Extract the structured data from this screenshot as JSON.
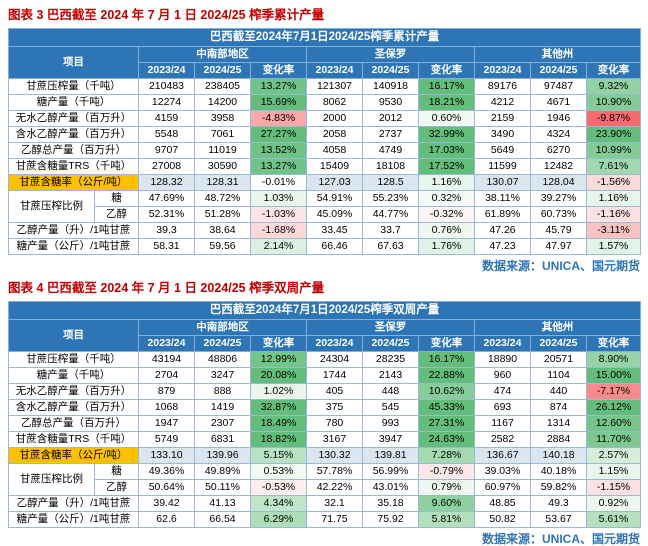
{
  "meta": {
    "title1": "图表 3 巴西截至 2024 年 7 月 1 日 2024/25 榨季累计产量",
    "title2": "图表 4 巴西截至 2024 年 7 月 1 日 2024/25 榨季双周产量",
    "source_label": "数据来源：UNICA、国元期货"
  },
  "colors": {
    "header_bg": "#2e75b6",
    "header_text": "#ffffff",
    "title_red": "#c00000",
    "source_blue": "#2e75b6",
    "border": "#9ab8da",
    "highlight_yellow": "#ffc000",
    "highlight_row_bg": "#dce6f1",
    "positive_green": "#63be7b",
    "negative_red": "#f8696b"
  },
  "tables": [
    {
      "caption": "巴西截至2024年7月1日2024/25榨季累计产量",
      "item_header": "项目",
      "region_headers": [
        "中南部地区",
        "圣保罗",
        "其他州"
      ],
      "period_headers": [
        "2023/24",
        "2024/25",
        "变化率"
      ],
      "rows": [
        {
          "label": "甘蔗压榨量（千吨）",
          "cells": [
            "210483",
            "238405",
            "13.27%",
            "121307",
            "140918",
            "16.17%",
            "89176",
            "97487",
            "9.32%"
          ]
        },
        {
          "label": "糖产量（千吨）",
          "cells": [
            "12274",
            "14200",
            "15.69%",
            "8062",
            "9530",
            "18.21%",
            "4212",
            "4671",
            "10.90%"
          ]
        },
        {
          "label": "无水乙醇产量（百万升）",
          "cells": [
            "4159",
            "3958",
            "-4.83%",
            "2000",
            "2012",
            "0.60%",
            "2159",
            "1946",
            "-9.87%"
          ]
        },
        {
          "label": "含水乙醇产量（百万升）",
          "cells": [
            "5548",
            "7061",
            "27.27%",
            "2058",
            "2737",
            "32.99%",
            "3490",
            "4324",
            "23.90%"
          ]
        },
        {
          "label": "乙醇总产量（百万升）",
          "cells": [
            "9707",
            "11019",
            "13.52%",
            "4058",
            "4749",
            "17.03%",
            "5649",
            "6270",
            "10.99%"
          ]
        },
        {
          "label": "甘蔗含糖量TRS（千吨）",
          "cells": [
            "27008",
            "30590",
            "13.27%",
            "15409",
            "18108",
            "17.52%",
            "11599",
            "12482",
            "7.61%"
          ]
        },
        {
          "label": "甘蔗含糖率（公斤/吨）",
          "highlight": true,
          "cells": [
            "128.32",
            "128.31",
            "-0.01%",
            "127.03",
            "128.5",
            "1.16%",
            "130.07",
            "128.04",
            "-1.56%"
          ]
        },
        {
          "group": "甘蔗压榨比例",
          "label": "糖",
          "cells": [
            "47.69%",
            "48.72%",
            "1.03%",
            "54.91%",
            "55.23%",
            "0.32%",
            "38.11%",
            "39.27%",
            "1.16%"
          ]
        },
        {
          "in_group": true,
          "label": "乙醇",
          "cells": [
            "52.31%",
            "51.28%",
            "-1.03%",
            "45.09%",
            "44.77%",
            "-0.32%",
            "61.89%",
            "60.73%",
            "-1.16%"
          ]
        },
        {
          "label": "乙醇产量（升）/1吨甘蔗",
          "cells": [
            "39.3",
            "38.64",
            "-1.68%",
            "33.45",
            "33.7",
            "0.76%",
            "47.26",
            "45.79",
            "-3.11%"
          ]
        },
        {
          "label": "糖产量（公斤）/1吨甘蔗",
          "cells": [
            "58.31",
            "59.56",
            "2.14%",
            "66.46",
            "67.63",
            "1.76%",
            "47.23",
            "47.97",
            "1.57%"
          ]
        }
      ]
    },
    {
      "caption": "巴西截至2024年7月1日2024/25榨季双周产量",
      "item_header": "项目",
      "region_headers": [
        "中南部地区",
        "圣保罗",
        "其他州"
      ],
      "period_headers": [
        "2023/24",
        "2024/25",
        "变化率"
      ],
      "rows": [
        {
          "label": "甘蔗压榨量（千吨）",
          "cells": [
            "43194",
            "48806",
            "12.99%",
            "24304",
            "28235",
            "16.17%",
            "18890",
            "20571",
            "8.90%"
          ]
        },
        {
          "label": "糖产量（千吨）",
          "cells": [
            "2704",
            "3247",
            "20.08%",
            "1744",
            "2143",
            "22.88%",
            "960",
            "1104",
            "15.00%"
          ]
        },
        {
          "label": "无水乙醇产量（百万升）",
          "cells": [
            "879",
            "888",
            "1.02%",
            "405",
            "448",
            "10.62%",
            "474",
            "440",
            "-7.17%"
          ]
        },
        {
          "label": "含水乙醇产量（百万升）",
          "cells": [
            "1068",
            "1419",
            "32.87%",
            "375",
            "545",
            "45.33%",
            "693",
            "874",
            "26.12%"
          ]
        },
        {
          "label": "乙醇总产量（百万升）",
          "cells": [
            "1947",
            "2307",
            "18.49%",
            "780",
            "993",
            "27.31%",
            "1167",
            "1314",
            "12.60%"
          ]
        },
        {
          "label": "甘蔗含糖量TRS（千吨）",
          "cells": [
            "5749",
            "6831",
            "18.82%",
            "3167",
            "3947",
            "24.63%",
            "2582",
            "2884",
            "11.70%"
          ]
        },
        {
          "label": "甘蔗含糖率（公斤/吨）",
          "highlight": true,
          "cells": [
            "133.10",
            "139.96",
            "5.15%",
            "130.32",
            "139.81",
            "7.28%",
            "136.67",
            "140.18",
            "2.57%"
          ]
        },
        {
          "group": "甘蔗压榨比例",
          "label": "糖",
          "cells": [
            "49.36%",
            "49.89%",
            "0.53%",
            "57.78%",
            "56.99%",
            "-0.79%",
            "39.03%",
            "40.18%",
            "1.15%"
          ]
        },
        {
          "in_group": true,
          "label": "乙醇",
          "cells": [
            "50.64%",
            "50.11%",
            "-0.53%",
            "42.22%",
            "43.01%",
            "0.79%",
            "60.97%",
            "59.82%",
            "-1.15%"
          ]
        },
        {
          "label": "乙醇产量（升）/1吨甘蔗",
          "cells": [
            "39.42",
            "41.13",
            "4.34%",
            "32.1",
            "35.18",
            "9.60%",
            "48.85",
            "49.3",
            "0.92%"
          ]
        },
        {
          "label": "糖产量（公斤）/1吨甘蔗",
          "cells": [
            "62.6",
            "66.54",
            "6.29%",
            "71.75",
            "75.92",
            "5.81%",
            "50.82",
            "53.67",
            "5.61%"
          ]
        }
      ]
    }
  ]
}
